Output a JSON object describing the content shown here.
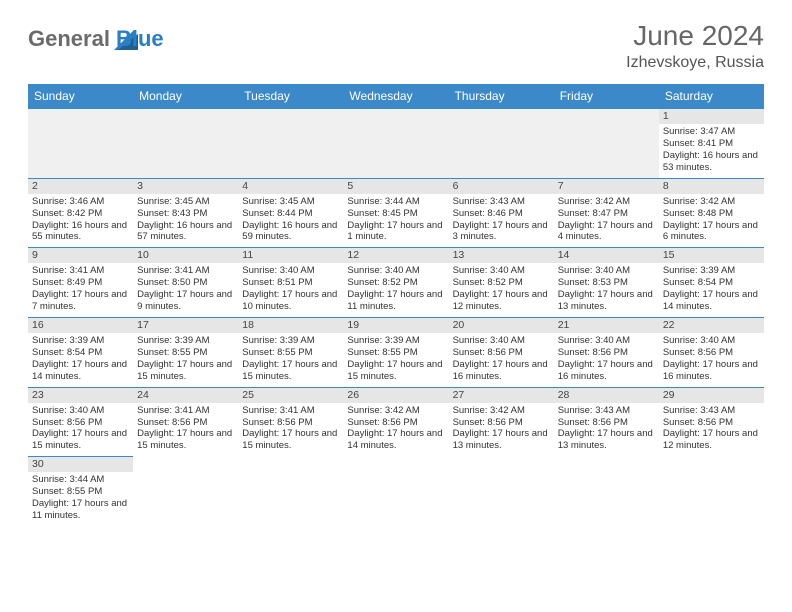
{
  "logo": {
    "part1": "General",
    "part2": "Blue"
  },
  "title": "June 2024",
  "location": "Izhevskoye, Russia",
  "header_bg": "#3b89c9",
  "daynum_bg": "#e6e6e6",
  "days": [
    "Sunday",
    "Monday",
    "Tuesday",
    "Wednesday",
    "Thursday",
    "Friday",
    "Saturday"
  ],
  "weeks": [
    [
      null,
      null,
      null,
      null,
      null,
      null,
      {
        "n": "1",
        "r": "3:47 AM",
        "s": "8:41 PM",
        "d": "16 hours and 53 minutes."
      }
    ],
    [
      {
        "n": "2",
        "r": "3:46 AM",
        "s": "8:42 PM",
        "d": "16 hours and 55 minutes."
      },
      {
        "n": "3",
        "r": "3:45 AM",
        "s": "8:43 PM",
        "d": "16 hours and 57 minutes."
      },
      {
        "n": "4",
        "r": "3:45 AM",
        "s": "8:44 PM",
        "d": "16 hours and 59 minutes."
      },
      {
        "n": "5",
        "r": "3:44 AM",
        "s": "8:45 PM",
        "d": "17 hours and 1 minute."
      },
      {
        "n": "6",
        "r": "3:43 AM",
        "s": "8:46 PM",
        "d": "17 hours and 3 minutes."
      },
      {
        "n": "7",
        "r": "3:42 AM",
        "s": "8:47 PM",
        "d": "17 hours and 4 minutes."
      },
      {
        "n": "8",
        "r": "3:42 AM",
        "s": "8:48 PM",
        "d": "17 hours and 6 minutes."
      }
    ],
    [
      {
        "n": "9",
        "r": "3:41 AM",
        "s": "8:49 PM",
        "d": "17 hours and 7 minutes."
      },
      {
        "n": "10",
        "r": "3:41 AM",
        "s": "8:50 PM",
        "d": "17 hours and 9 minutes."
      },
      {
        "n": "11",
        "r": "3:40 AM",
        "s": "8:51 PM",
        "d": "17 hours and 10 minutes."
      },
      {
        "n": "12",
        "r": "3:40 AM",
        "s": "8:52 PM",
        "d": "17 hours and 11 minutes."
      },
      {
        "n": "13",
        "r": "3:40 AM",
        "s": "8:52 PM",
        "d": "17 hours and 12 minutes."
      },
      {
        "n": "14",
        "r": "3:40 AM",
        "s": "8:53 PM",
        "d": "17 hours and 13 minutes."
      },
      {
        "n": "15",
        "r": "3:39 AM",
        "s": "8:54 PM",
        "d": "17 hours and 14 minutes."
      }
    ],
    [
      {
        "n": "16",
        "r": "3:39 AM",
        "s": "8:54 PM",
        "d": "17 hours and 14 minutes."
      },
      {
        "n": "17",
        "r": "3:39 AM",
        "s": "8:55 PM",
        "d": "17 hours and 15 minutes."
      },
      {
        "n": "18",
        "r": "3:39 AM",
        "s": "8:55 PM",
        "d": "17 hours and 15 minutes."
      },
      {
        "n": "19",
        "r": "3:39 AM",
        "s": "8:55 PM",
        "d": "17 hours and 15 minutes."
      },
      {
        "n": "20",
        "r": "3:40 AM",
        "s": "8:56 PM",
        "d": "17 hours and 16 minutes."
      },
      {
        "n": "21",
        "r": "3:40 AM",
        "s": "8:56 PM",
        "d": "17 hours and 16 minutes."
      },
      {
        "n": "22",
        "r": "3:40 AM",
        "s": "8:56 PM",
        "d": "17 hours and 16 minutes."
      }
    ],
    [
      {
        "n": "23",
        "r": "3:40 AM",
        "s": "8:56 PM",
        "d": "17 hours and 15 minutes."
      },
      {
        "n": "24",
        "r": "3:41 AM",
        "s": "8:56 PM",
        "d": "17 hours and 15 minutes."
      },
      {
        "n": "25",
        "r": "3:41 AM",
        "s": "8:56 PM",
        "d": "17 hours and 15 minutes."
      },
      {
        "n": "26",
        "r": "3:42 AM",
        "s": "8:56 PM",
        "d": "17 hours and 14 minutes."
      },
      {
        "n": "27",
        "r": "3:42 AM",
        "s": "8:56 PM",
        "d": "17 hours and 13 minutes."
      },
      {
        "n": "28",
        "r": "3:43 AM",
        "s": "8:56 PM",
        "d": "17 hours and 13 minutes."
      },
      {
        "n": "29",
        "r": "3:43 AM",
        "s": "8:56 PM",
        "d": "17 hours and 12 minutes."
      }
    ],
    [
      {
        "n": "30",
        "r": "3:44 AM",
        "s": "8:55 PM",
        "d": "17 hours and 11 minutes."
      },
      null,
      null,
      null,
      null,
      null,
      null
    ]
  ],
  "labels": {
    "sunrise": "Sunrise: ",
    "sunset": "Sunset: ",
    "daylight": "Daylight: "
  }
}
